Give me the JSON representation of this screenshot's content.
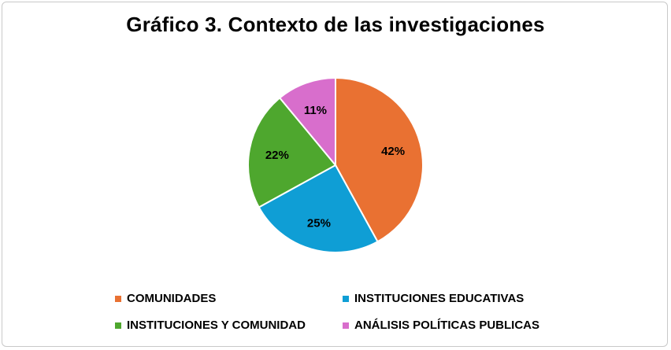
{
  "chart_data": {
    "type": "pie",
    "title": "Gráfico 3. Contexto de las investigaciones",
    "legend_position": "bottom",
    "slices": [
      {
        "name": "COMUNIDADES",
        "value": 42,
        "label": "42%",
        "color": "#E97132"
      },
      {
        "name": "INSTITUCIONES EDUCATIVAS",
        "value": 25,
        "label": "25%",
        "color": "#0F9ED5"
      },
      {
        "name": "INSTITUCIONES Y COMUNIDAD",
        "value": 22,
        "label": "22%",
        "color": "#4EA72E"
      },
      {
        "name": "ANÁLISIS POLÍTICAS PUBLICAS",
        "value": 11,
        "label": "11%",
        "color": "#D86ECC"
      }
    ]
  }
}
